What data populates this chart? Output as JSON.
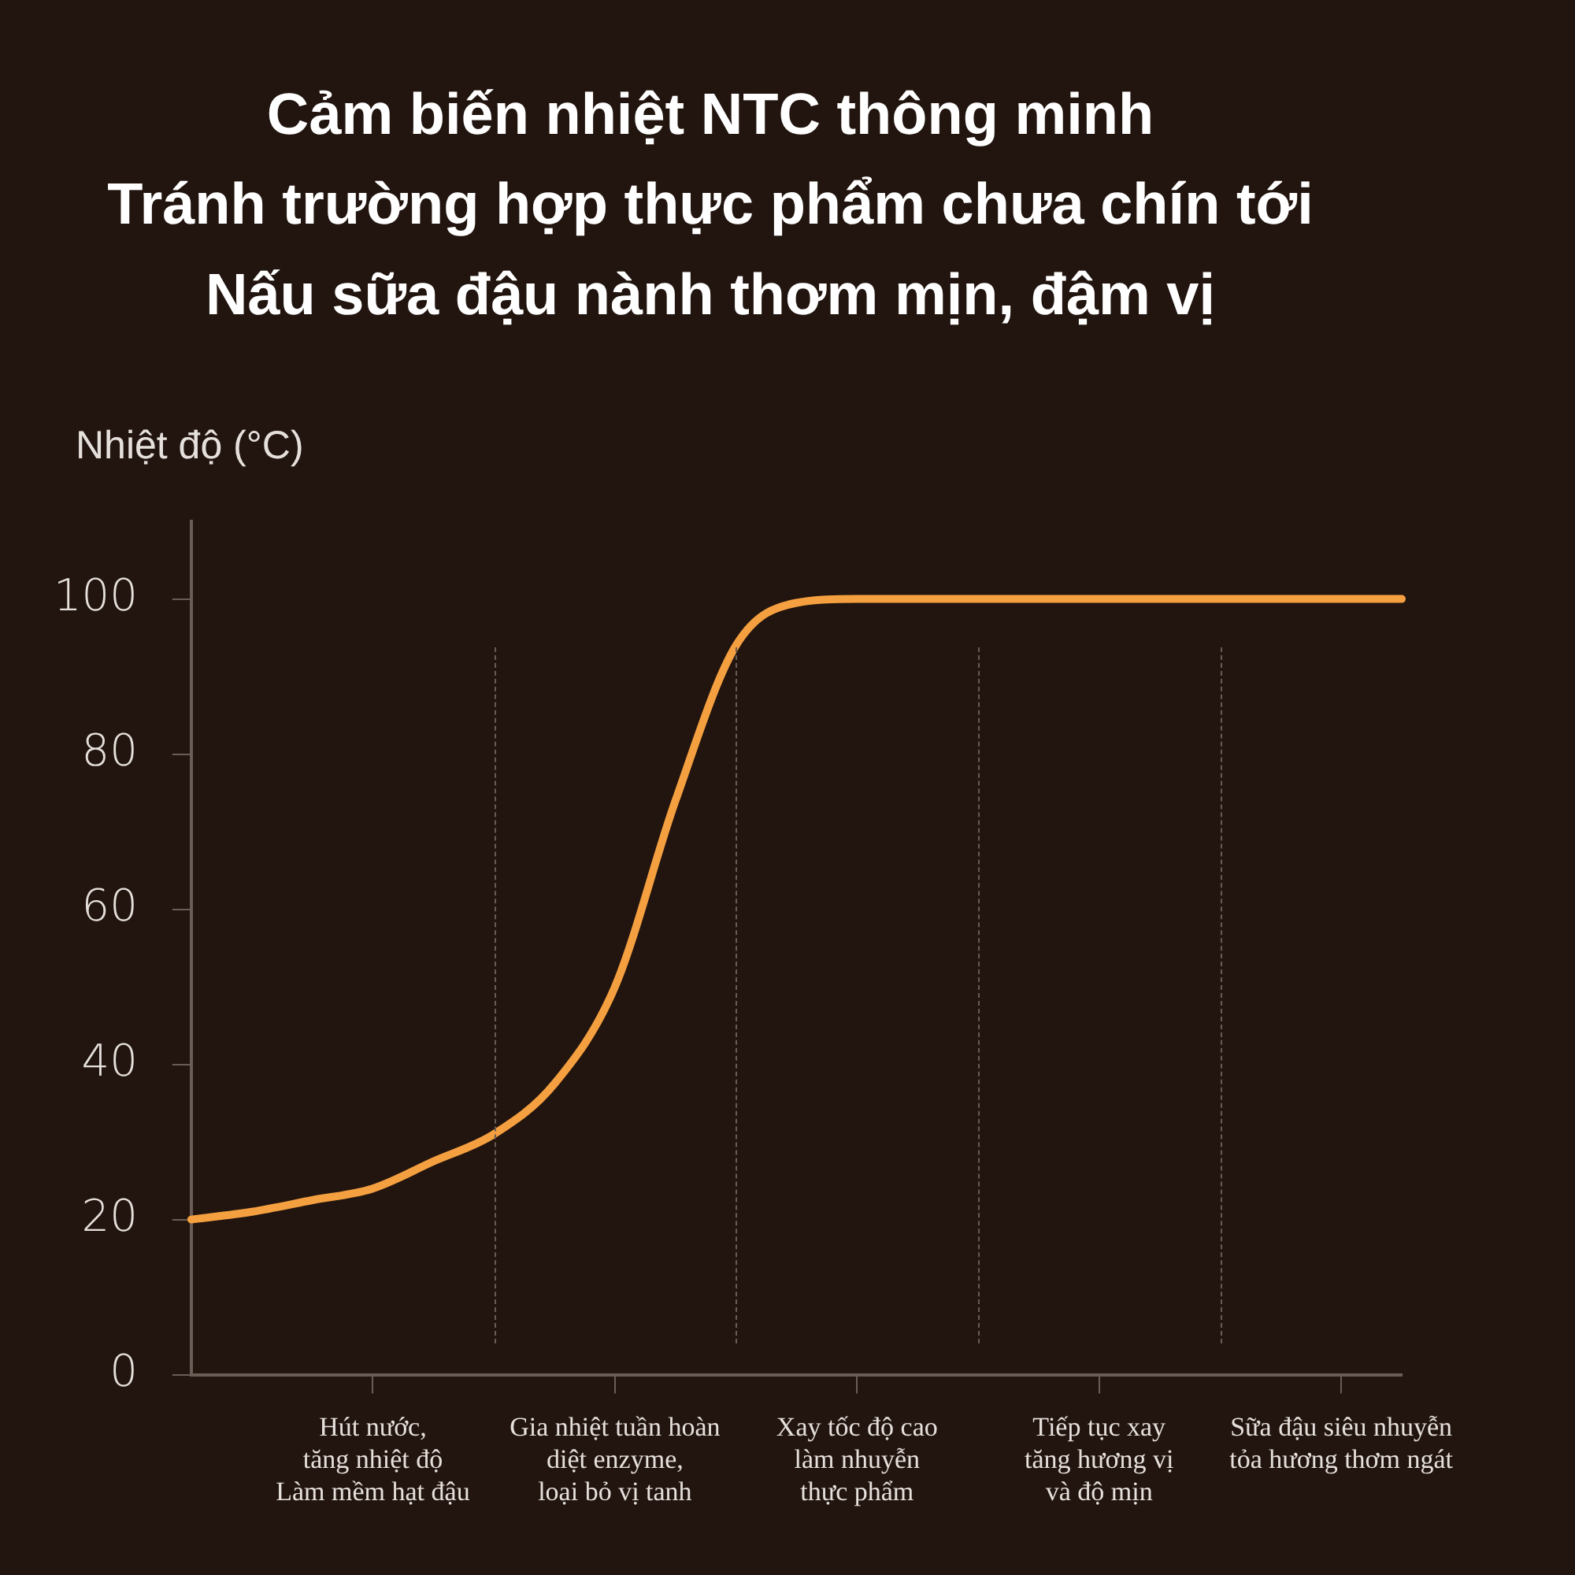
{
  "chart_data": {
    "type": "line",
    "title": "Cảm biến nhiệt NTC thông minh\nTránh trường hợp thực phẩm chưa chín tới\nNấu sữa đậu nành thơm mịn, đậm vị",
    "ylabel": "Nhiệt độ (°C)",
    "categories": [
      null,
      null,
      null,
      "Hút nước,\ntăng nhiệt độ\nLàm mềm hạt đậu",
      null,
      null,
      null,
      "Gia nhiệt tuần hoàn\ndiệt enzyme,\nloại bỏ vị tanh",
      null,
      null,
      null,
      "Xay tốc độ cao\nlàm nhuyễn\nthực phẩm",
      null,
      null,
      null,
      "Tiếp tục xay\ntăng hương vị\nvà độ mịn",
      null,
      null,
      null,
      "Sữa đậu siêu nhuyễn\ntỏa hương thơm ngát",
      null
    ],
    "ylim": [
      0,
      110
    ],
    "yticks": [
      0,
      20,
      40,
      60,
      80,
      100
    ],
    "grid": "x",
    "legend": false,
    "marker": "none",
    "line_style": "solid",
    "series": [
      {
        "color": "#f5a040",
        "values": [
          20,
          21,
          22.5,
          24,
          27.5,
          31,
          37.5,
          50,
          74,
          94,
          99.5,
          100,
          100,
          100,
          100,
          100,
          100,
          100,
          100,
          100,
          100
        ]
      }
    ]
  }
}
